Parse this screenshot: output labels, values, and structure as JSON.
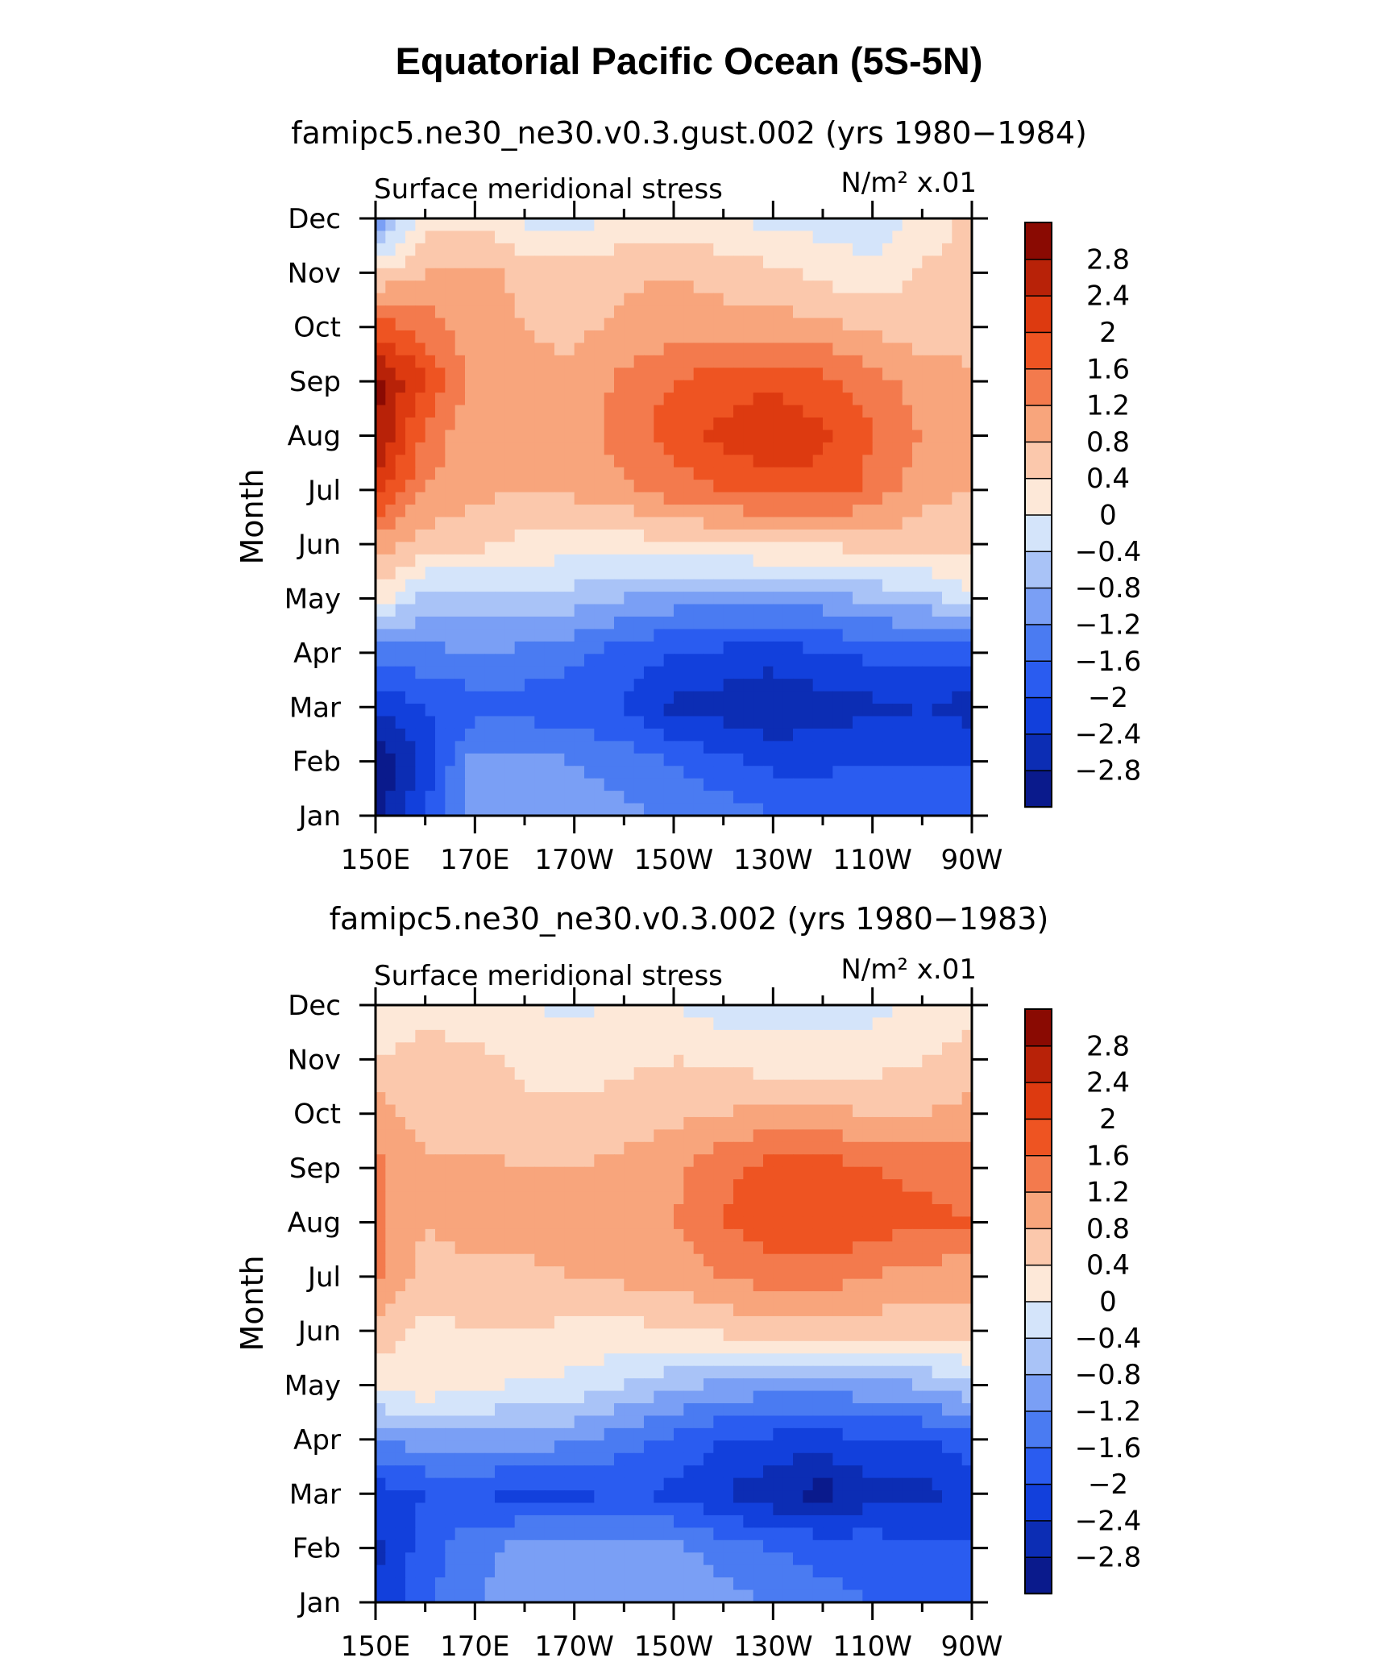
{
  "page": {
    "title": "Equatorial Pacific Ocean (5S-5N)"
  },
  "chart_data": [
    {
      "type": "heatmap",
      "subtitle": "famipc5.ne30_ne30.v0.3.gust.002 (yrs 1980−1984)",
      "variable_label": "Surface meridional stress",
      "units_label": "N/m² x.01",
      "ylabel": "Month",
      "xlabel": "",
      "x": [
        150,
        160,
        170,
        180,
        190,
        200,
        210,
        220,
        230,
        240,
        250,
        260,
        270
      ],
      "x_units": "degrees east longitude",
      "xlim": [
        150,
        270
      ],
      "xticks": [
        150,
        170,
        190,
        210,
        230,
        250,
        270
      ],
      "xtick_labels": [
        "150E",
        "170E",
        "170W",
        "150W",
        "130W",
        "110W",
        "90W"
      ],
      "y": [
        "Jan",
        "Feb",
        "Mar",
        "Apr",
        "May",
        "Jun",
        "Jul",
        "Aug",
        "Sep",
        "Oct",
        "Nov",
        "Dec"
      ],
      "ytick_labels": [
        "Jan",
        "Feb",
        "Mar",
        "Apr",
        "May",
        "Jun",
        "Jul",
        "Aug",
        "Sep",
        "Oct",
        "Nov",
        "Dec"
      ],
      "z": [
        [
          -3.0,
          -2.0,
          -1.0,
          -0.9,
          -1.0,
          -1.1,
          -1.3,
          -1.4,
          -1.6,
          -1.7,
          -1.7,
          -1.6,
          -1.9
        ],
        [
          -3.2,
          -2.2,
          -1.0,
          -1.0,
          -1.2,
          -1.4,
          -1.6,
          -1.9,
          -2.1,
          -2.1,
          -2.0,
          -2.0,
          -2.0
        ],
        [
          -2.4,
          -2.0,
          -1.8,
          -1.8,
          -1.9,
          -2.0,
          -2.5,
          -2.6,
          -2.8,
          -2.6,
          -2.5,
          -2.4,
          -2.6
        ],
        [
          -1.4,
          -1.3,
          -1.2,
          -1.3,
          -1.5,
          -1.8,
          -2.0,
          -2.1,
          -2.2,
          -2.0,
          -1.9,
          -1.8,
          -1.8
        ],
        [
          0.3,
          -0.6,
          -0.5,
          -0.4,
          -0.6,
          -0.8,
          -1.0,
          -1.0,
          -1.1,
          -1.0,
          -0.7,
          -0.6,
          -0.1
        ],
        [
          1.0,
          0.6,
          0.5,
          0.3,
          0.2,
          0.2,
          0.3,
          0.4,
          0.5,
          0.5,
          0.5,
          0.6,
          0.5
        ],
        [
          2.2,
          1.2,
          0.9,
          0.8,
          0.9,
          1.1,
          1.4,
          1.6,
          1.8,
          1.8,
          1.5,
          0.9,
          0.8
        ],
        [
          2.8,
          1.5,
          0.8,
          0.9,
          1.0,
          1.4,
          1.8,
          2.1,
          2.4,
          2.1,
          1.6,
          1.2,
          0.9
        ],
        [
          3.0,
          2.0,
          1.0,
          0.9,
          0.9,
          1.3,
          1.6,
          1.8,
          1.9,
          1.7,
          1.4,
          1.0,
          0.9
        ],
        [
          1.8,
          1.4,
          1.0,
          0.8,
          0.7,
          0.9,
          1.0,
          1.0,
          1.0,
          0.9,
          0.7,
          0.6,
          0.6
        ],
        [
          0.4,
          0.8,
          0.9,
          0.7,
          0.6,
          0.7,
          0.8,
          0.6,
          0.5,
          0.3,
          0.1,
          0.5,
          0.6
        ],
        [
          -1.2,
          0.2,
          0.3,
          -0.1,
          -0.2,
          0.1,
          0.2,
          0.0,
          -0.1,
          -0.2,
          -0.3,
          0.1,
          0.5
        ]
      ]
    },
    {
      "type": "heatmap",
      "subtitle": "famipc5.ne30_ne30.v0.3.002 (yrs 1980−1983)",
      "variable_label": "Surface meridional stress",
      "units_label": "N/m² x.01",
      "ylabel": "Month",
      "xlabel": "",
      "x": [
        150,
        160,
        170,
        180,
        190,
        200,
        210,
        220,
        230,
        240,
        250,
        260,
        270
      ],
      "x_units": "degrees east longitude",
      "xlim": [
        150,
        270
      ],
      "xticks": [
        150,
        170,
        190,
        210,
        230,
        250,
        270
      ],
      "xtick_labels": [
        "150E",
        "170E",
        "170W",
        "150W",
        "130W",
        "110W",
        "90W"
      ],
      "y": [
        "Jan",
        "Feb",
        "Mar",
        "Apr",
        "May",
        "Jun",
        "Jul",
        "Aug",
        "Sep",
        "Oct",
        "Nov",
        "Dec"
      ],
      "ytick_labels": [
        "Jan",
        "Feb",
        "Mar",
        "Apr",
        "May",
        "Jun",
        "Jul",
        "Aug",
        "Sep",
        "Oct",
        "Nov",
        "Dec"
      ],
      "z": [
        [
          -2.4,
          -1.7,
          -1.2,
          -1.1,
          -0.9,
          -0.8,
          -0.8,
          -1.0,
          -1.3,
          -1.5,
          -1.6,
          -1.6,
          -1.8
        ],
        [
          -2.5,
          -1.8,
          -1.3,
          -1.1,
          -1.0,
          -1.0,
          -1.1,
          -1.4,
          -1.6,
          -1.7,
          -1.8,
          -1.9,
          -2.0
        ],
        [
          -2.2,
          -2.0,
          -2.0,
          -2.1,
          -2.1,
          -2.0,
          -2.1,
          -2.4,
          -2.7,
          -3.0,
          -2.5,
          -2.6,
          -2.2
        ],
        [
          -1.2,
          -1.0,
          -0.9,
          -1.0,
          -1.1,
          -1.4,
          -1.7,
          -2.0,
          -2.1,
          -2.2,
          -2.0,
          -2.0,
          -1.8
        ],
        [
          0.2,
          0.3,
          0.1,
          -0.1,
          -0.1,
          -0.4,
          -0.7,
          -0.9,
          -1.0,
          -1.0,
          -0.9,
          -0.8,
          -0.4
        ],
        [
          0.6,
          0.3,
          0.4,
          0.4,
          0.3,
          0.3,
          0.3,
          0.5,
          0.6,
          0.6,
          0.6,
          0.5,
          0.5
        ],
        [
          1.3,
          0.6,
          0.7,
          0.7,
          0.8,
          0.9,
          1.0,
          1.2,
          1.4,
          1.4,
          1.2,
          1.0,
          1.0
        ],
        [
          1.3,
          0.8,
          1.0,
          1.0,
          1.0,
          1.1,
          1.2,
          1.6,
          1.9,
          2.0,
          1.8,
          1.7,
          1.6
        ],
        [
          1.3,
          0.9,
          0.9,
          0.8,
          0.8,
          0.9,
          1.1,
          1.5,
          1.8,
          1.8,
          1.6,
          1.5,
          1.4
        ],
        [
          1.0,
          0.6,
          0.6,
          0.5,
          0.5,
          0.6,
          0.7,
          0.8,
          0.9,
          0.9,
          0.8,
          0.8,
          0.9
        ],
        [
          0.4,
          0.5,
          0.5,
          0.3,
          0.2,
          0.3,
          0.4,
          0.3,
          0.2,
          0.1,
          0.2,
          0.4,
          0.6
        ],
        [
          0.2,
          0.3,
          0.2,
          0.0,
          -0.1,
          0.1,
          0.0,
          -0.2,
          -0.2,
          -0.1,
          -0.1,
          0.1,
          0.2
        ]
      ]
    }
  ],
  "colorbar": {
    "levels": [
      -2.8,
      -2.4,
      -2.0,
      -1.6,
      -1.2,
      -0.8,
      -0.4,
      0,
      0.4,
      0.8,
      1.2,
      1.6,
      2.0,
      2.4,
      2.8
    ],
    "level_labels": [
      "−2.8",
      "−2.4",
      "−2",
      "−1.6",
      "−1.2",
      "−0.8",
      "−0.4",
      "0",
      "0.4",
      "0.8",
      "1.2",
      "1.6",
      "2",
      "2.4",
      "2.8"
    ],
    "colors": [
      "#0a1a8c",
      "#0c2db4",
      "#1240dc",
      "#2a5cf0",
      "#4a7bf2",
      "#7a9ff5",
      "#a9c3f7",
      "#d4e4fa",
      "#fde8d8",
      "#fbc8ac",
      "#f8a57c",
      "#f37a4d",
      "#ee5422",
      "#dd3a10",
      "#b82208",
      "#8a0a02"
    ]
  }
}
